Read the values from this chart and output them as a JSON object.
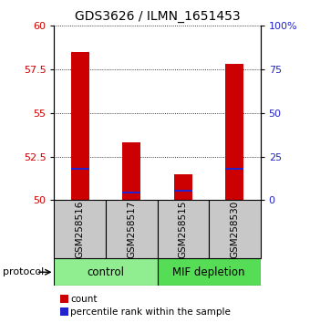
{
  "title": "GDS3626 / ILMN_1651453",
  "samples": [
    "GSM258516",
    "GSM258517",
    "GSM258515",
    "GSM258530"
  ],
  "red_values": [
    58.5,
    53.3,
    51.5,
    57.8
  ],
  "blue_values": [
    51.8,
    50.45,
    50.55,
    51.8
  ],
  "ylim": [
    50,
    60
  ],
  "yticks_left": [
    50,
    52.5,
    55,
    57.5,
    60
  ],
  "yticks_right": [
    0,
    25,
    50,
    75,
    100
  ],
  "bar_color_red": "#CC0000",
  "bar_color_blue": "#2222CC",
  "sample_area_color": "#C8C8C8",
  "group_ctrl_color": "#90EE90",
  "group_mif_color": "#55DD55",
  "protocol_label": "protocol",
  "legend_count": "count",
  "legend_percentile": "percentile rank within the sample",
  "bar_width": 0.35,
  "blue_bar_height": 0.12,
  "title_fontsize": 10,
  "tick_fontsize": 8,
  "group_label_fontsize": 8.5
}
